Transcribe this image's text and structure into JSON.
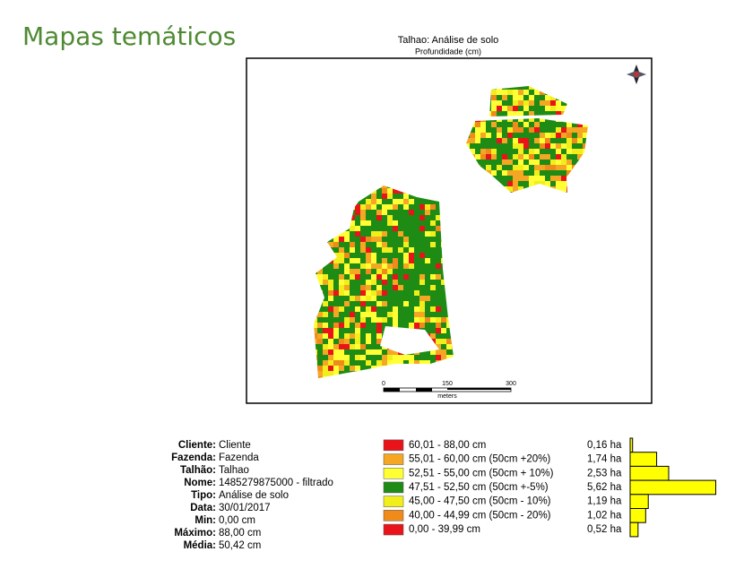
{
  "header": {
    "title": "Mapas temáticos"
  },
  "map": {
    "title": "Talhao: Análise de solo",
    "subtitle": "Profundidade (cm)",
    "scale": {
      "ticks": [
        "0",
        "150",
        "300"
      ],
      "unit": "meters"
    }
  },
  "info": [
    {
      "label": "Cliente:",
      "value": "Cliente"
    },
    {
      "label": "Fazenda:",
      "value": "Fazenda"
    },
    {
      "label": "Talhão:",
      "value": "Talhao"
    },
    {
      "label": "Nome:",
      "value": "1485279875000 - filtrado"
    },
    {
      "label": "Tipo:",
      "value": "Análise de solo"
    },
    {
      "label": "Data:",
      "value": "30/01/2017"
    },
    {
      "label": "Min:",
      "value": "0,00 cm"
    },
    {
      "label": "Máximo:",
      "value": "88,00 cm"
    },
    {
      "label": "Média:",
      "value": "50,42 cm"
    }
  ],
  "legend": [
    {
      "color": "#e8141a",
      "range": "60,01 - 88,00 cm",
      "area": 0.16,
      "area_label": "0,16 ha"
    },
    {
      "color": "#f5a623",
      "range": "55,01 - 60,00 cm (50cm +20%)",
      "area": 1.74,
      "area_label": "1,74 ha"
    },
    {
      "color": "#ffff33",
      "range": "52,51 - 55,00 cm (50cm + 10%)",
      "area": 2.53,
      "area_label": "2,53 ha"
    },
    {
      "color": "#1e8c14",
      "range": "47,51 - 52,50 cm (50cm +-5%)",
      "area": 5.62,
      "area_label": "5,62 ha"
    },
    {
      "color": "#f2ee1c",
      "range": "45,00 - 47,50 cm (50cm - 10%)",
      "area": 1.19,
      "area_label": "1,19 ha"
    },
    {
      "color": "#f08a1a",
      "range": "40,00 - 44,99 cm (50cm - 20%)",
      "area": 1.02,
      "area_label": "1,02 ha"
    },
    {
      "color": "#e8141a",
      "range": "0,00 - 39,99 cm",
      "area": 0.52,
      "area_label": "0,52 ha"
    }
  ]
}
